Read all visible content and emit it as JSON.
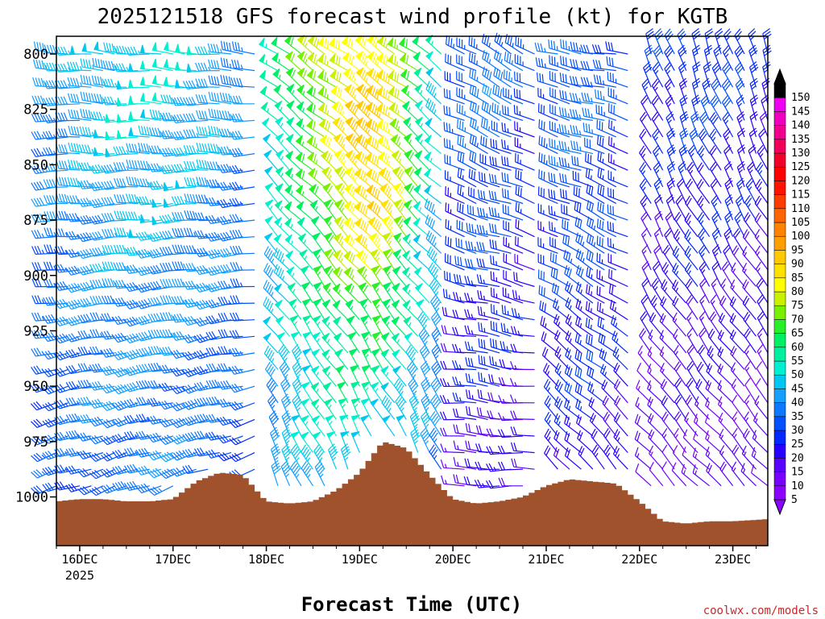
{
  "chart_data": {
    "type": "wind_profile",
    "title": "2025121518 GFS forecast wind profile (kt) for KGTB",
    "xlabel": "Forecast Time (UTC)",
    "ylabel": "",
    "credit": "coolwx.com/models",
    "x_ticks": [
      {
        "label": "16DEC",
        "sublabel": "2025",
        "hour": 6
      },
      {
        "label": "17DEC",
        "sublabel": "",
        "hour": 30
      },
      {
        "label": "18DEC",
        "sublabel": "",
        "hour": 54
      },
      {
        "label": "19DEC",
        "sublabel": "",
        "hour": 78
      },
      {
        "label": "20DEC",
        "sublabel": "",
        "hour": 102
      },
      {
        "label": "21DEC",
        "sublabel": "",
        "hour": 126
      },
      {
        "label": "22DEC",
        "sublabel": "",
        "hour": 150
      },
      {
        "label": "23DEC",
        "sublabel": "",
        "hour": 174
      }
    ],
    "x_range_hours": [
      0,
      183
    ],
    "y_range_hpa": [
      792,
      1022
    ],
    "y_ticks": [
      {
        "label": "800",
        "value": 800
      },
      {
        "label": "825",
        "value": 825
      },
      {
        "label": "850",
        "value": 850
      },
      {
        "label": "875",
        "value": 875
      },
      {
        "label": "900",
        "value": 900
      },
      {
        "label": "925",
        "value": 925
      },
      {
        "label": "950",
        "value": 950
      },
      {
        "label": "975",
        "value": 975
      },
      {
        "label": "1000",
        "value": 1000
      }
    ],
    "pressure_levels": [
      800,
      807.5,
      815,
      822.5,
      830,
      837.5,
      845,
      852.5,
      860,
      867.5,
      875,
      882.5,
      890,
      897.5,
      905,
      912.5,
      920,
      927.5,
      935,
      942.5,
      950,
      957.5,
      965,
      972.5,
      980,
      987.5,
      995
    ],
    "time_step_hours": 3,
    "surface_pressure": {
      "hours": [
        0,
        6,
        12,
        18,
        24,
        30,
        36,
        42,
        48,
        54,
        60,
        66,
        72,
        78,
        84,
        90,
        96,
        102,
        108,
        114,
        120,
        126,
        132,
        138,
        144,
        150,
        156,
        162,
        168,
        174,
        183
      ],
      "hpa": [
        1002,
        1001,
        1001,
        1002,
        1002,
        1001,
        993,
        989,
        990,
        1002,
        1003,
        1002,
        997,
        989,
        975,
        978,
        990,
        1001,
        1003,
        1002,
        1000,
        995,
        992,
        993,
        994,
        1002,
        1011,
        1012,
        1011,
        1011,
        1010
      ]
    },
    "wind_segments": [
      {
        "start_hour": 0,
        "end_hour": 51,
        "dir_top": 275,
        "dir_bottom": 250,
        "speed_top": 40,
        "speed_bottom": 30,
        "speed_amp": 10
      },
      {
        "start_hour": 54,
        "end_hour": 99,
        "dir_top": 305,
        "dir_bottom": 335,
        "speed_top": 50,
        "speed_bottom": 35,
        "speed_amp": 28
      },
      {
        "start_hour": 102,
        "end_hour": 123,
        "dir_top": 300,
        "dir_bottom": 270,
        "speed_top": 30,
        "speed_bottom": 15,
        "speed_amp": 8
      },
      {
        "start_hour": 126,
        "end_hour": 147,
        "dir_top": 280,
        "dir_bottom": 320,
        "speed_top": 30,
        "speed_bottom": 20,
        "speed_amp": 6
      },
      {
        "start_hour": 150,
        "end_hour": 183,
        "dir_top": 340,
        "dir_bottom": 315,
        "speed_top": 25,
        "speed_bottom": 12,
        "speed_amp": 5
      }
    ],
    "jet_center": {
      "hour": 84,
      "hpa": 860,
      "width_hours": 10,
      "depth_hpa": 60
    },
    "colorbar": {
      "levels": [
        5,
        10,
        15,
        20,
        25,
        30,
        35,
        40,
        45,
        50,
        55,
        60,
        65,
        70,
        75,
        80,
        85,
        90,
        95,
        100,
        105,
        110,
        115,
        120,
        125,
        130,
        135,
        140,
        145,
        150
      ],
      "labels": [
        "5",
        "10",
        "15",
        "20",
        "25",
        "30",
        "35",
        "40",
        "45",
        "50",
        "55",
        "60",
        "65",
        "70",
        "75",
        "80",
        "85",
        "90",
        "95",
        "100",
        "105",
        "110",
        "115",
        "120",
        "125",
        "130",
        "135",
        "140",
        "145",
        "150"
      ],
      "colors": [
        "#8c00ff",
        "#7800ff",
        "#5a00ff",
        "#2800ff",
        "#0028ff",
        "#0050ff",
        "#0a78ff",
        "#14a0ff",
        "#00c8f0",
        "#00f0d2",
        "#00f0a0",
        "#00f064",
        "#28f028",
        "#78f000",
        "#c8f000",
        "#ffff00",
        "#ffe100",
        "#ffc800",
        "#ffa000",
        "#ff8200",
        "#ff6400",
        "#ff3c00",
        "#ff1400",
        "#ff0000",
        "#f00028",
        "#f0005a",
        "#f0008c",
        "#f000be",
        "#f000f0",
        "#000000"
      ]
    },
    "terrain_color": "#a0522d"
  }
}
